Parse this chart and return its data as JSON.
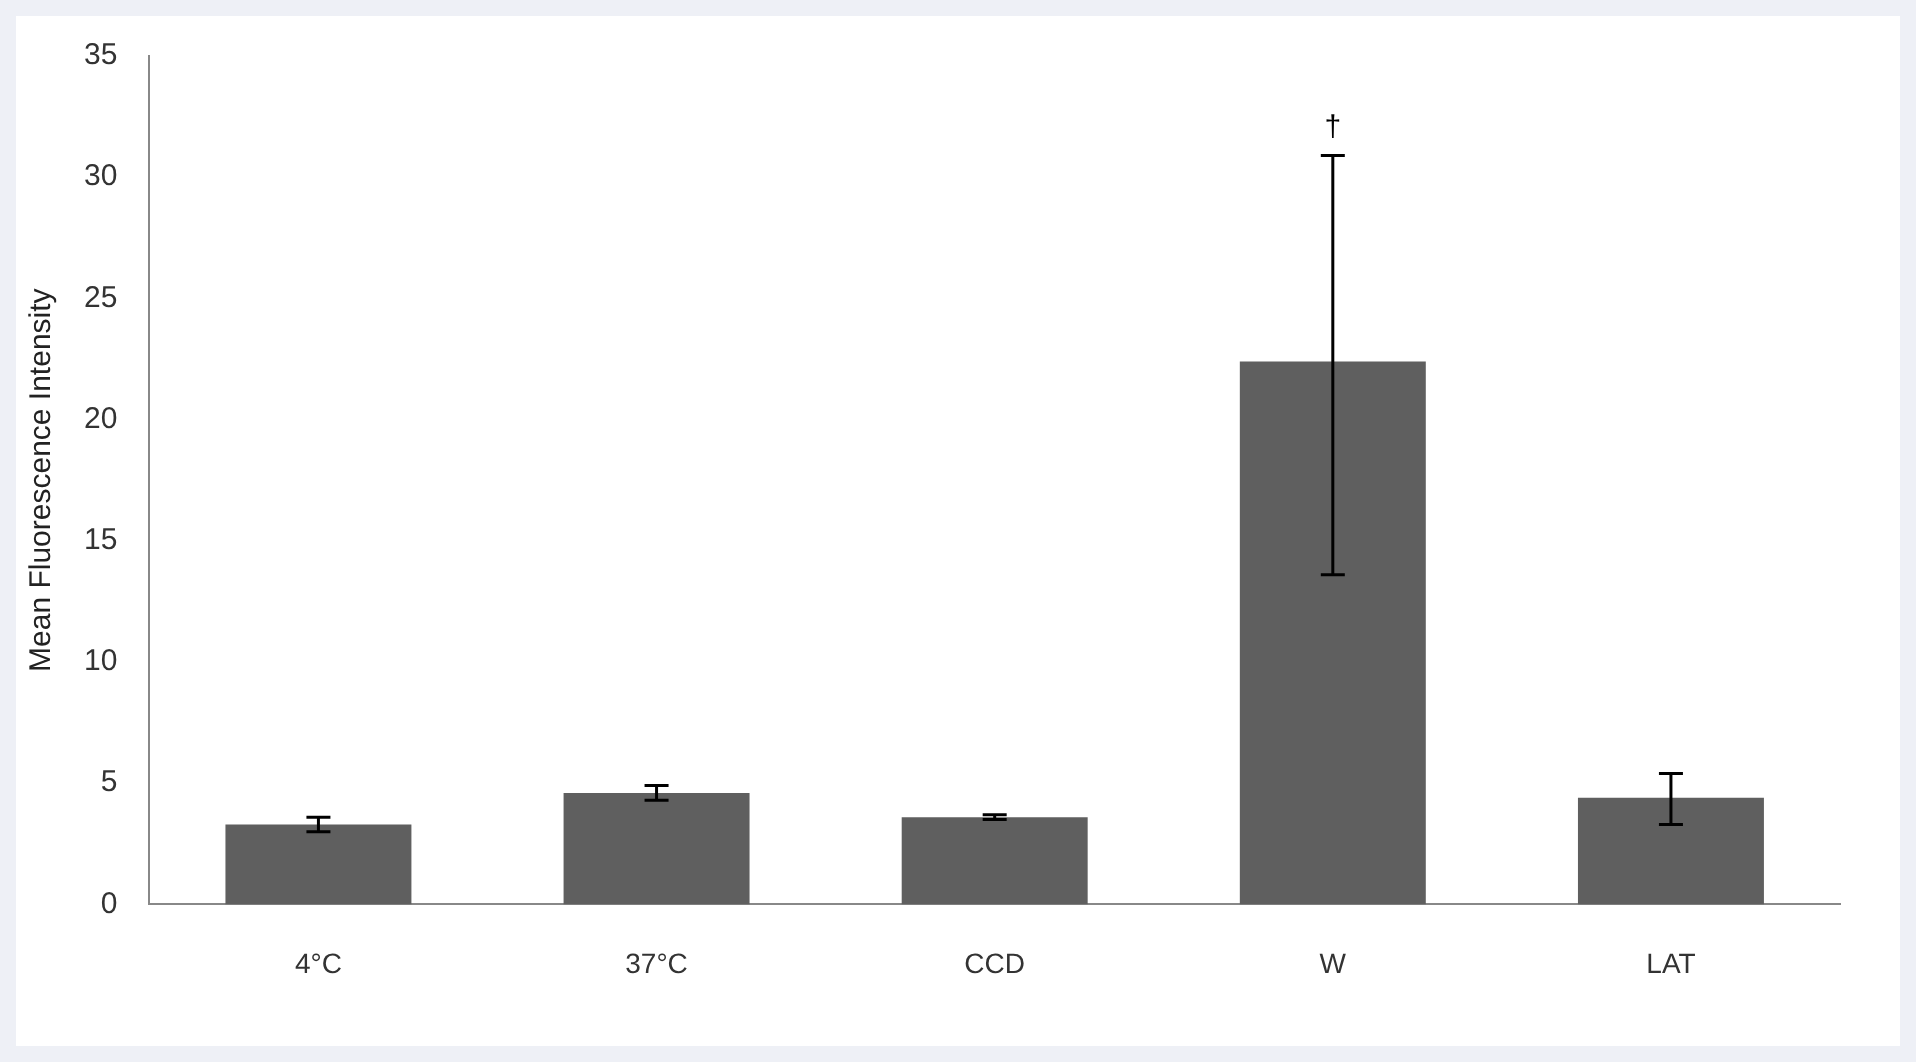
{
  "chart_data": {
    "type": "bar",
    "ylabel": "Mean Fluorescence Intensity",
    "categories": [
      "4°C",
      "37°C",
      "CCD",
      "W",
      "LAT"
    ],
    "values": [
      3.3,
      4.6,
      3.6,
      22.4,
      4.4
    ],
    "errors": [
      0.3,
      0.3,
      0.1,
      [
        13.6,
        30.9
      ],
      [
        3.3,
        5.4
      ]
    ],
    "color": "#5f5f5f",
    "ylim": [
      0,
      35
    ],
    "yticks": [
      0,
      5,
      10,
      15,
      20,
      25,
      30,
      35
    ],
    "annotations": [
      "†"
    ],
    "grid": false,
    "legend": false
  }
}
